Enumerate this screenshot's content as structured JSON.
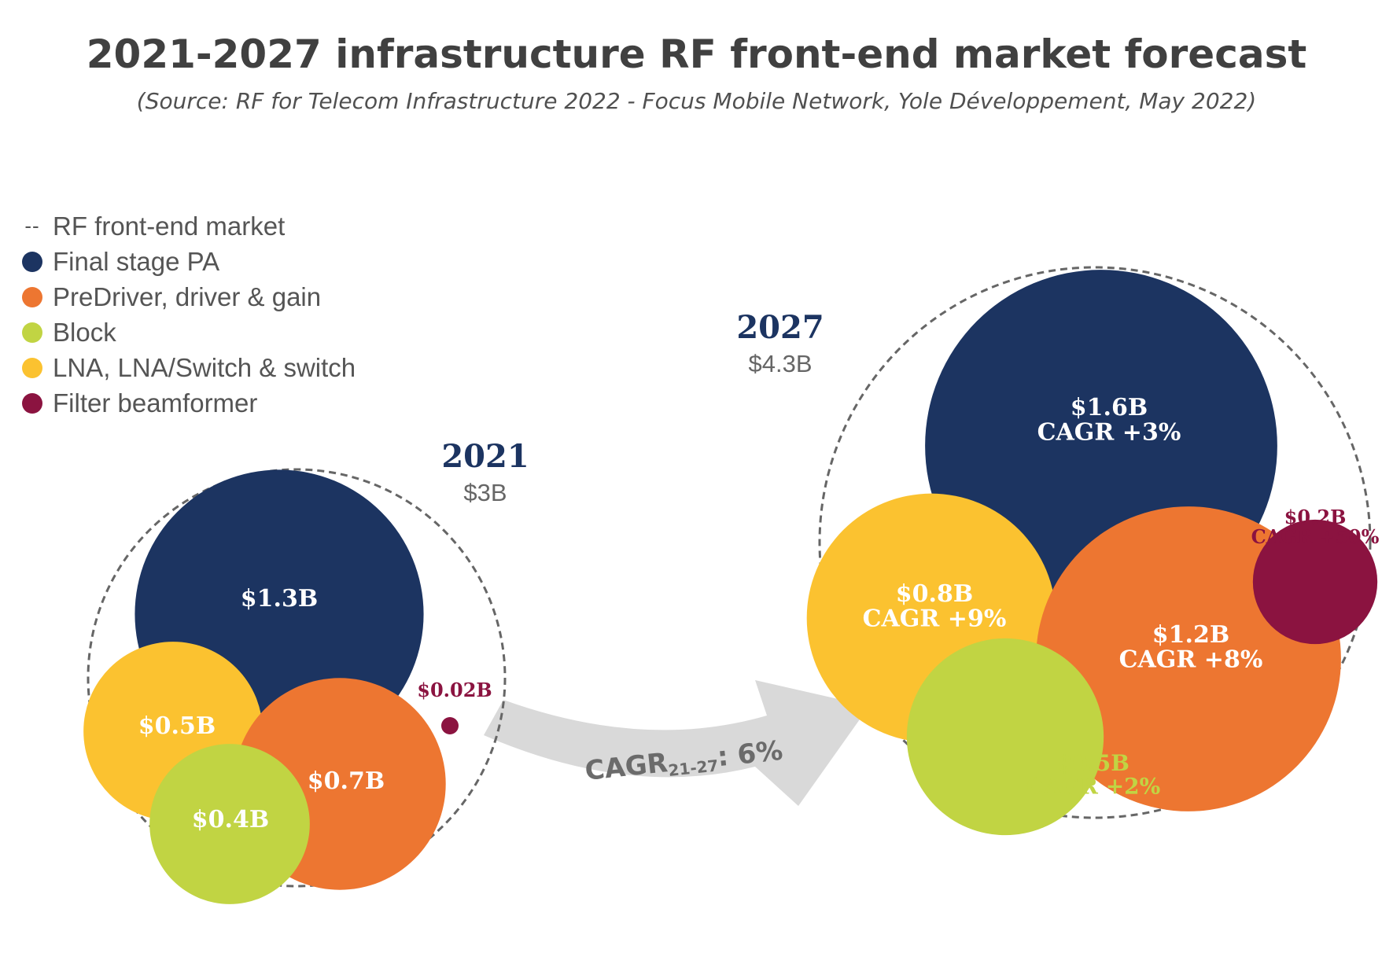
{
  "chart_data": {
    "type": "bubble",
    "title": "2021-2027 infrastructure RF front-end market forecast",
    "subtitle": "(Source: RF for Telecom Infrastructure 2022 - Focus Mobile Network, Yole Développement, May 2022)",
    "legend": [
      {
        "label": "RF front-end market",
        "marker": "dashed-line",
        "color": "#666666"
      },
      {
        "label": "Final stage PA",
        "marker": "dot",
        "color": "#1c3461"
      },
      {
        "label": "PreDriver, driver & gain",
        "marker": "dot",
        "color": "#ed7631"
      },
      {
        "label": "Block",
        "marker": "dot",
        "color": "#c1d443"
      },
      {
        "label": "LNA, LNA/Switch & switch",
        "marker": "dot",
        "color": "#fbc230"
      },
      {
        "label": "Filter beamformer",
        "marker": "dot",
        "color": "#8b1340"
      }
    ],
    "legend_position": "top-left",
    "years": [
      {
        "year": "2021",
        "total_label": "$3B",
        "total_value": 3,
        "segments": [
          {
            "segment": "Final stage PA",
            "value": 1.3,
            "label": "$1.3B",
            "cagr": ""
          },
          {
            "segment": "LNA, LNA/Switch & switch",
            "value": 0.5,
            "label": "$0.5B",
            "cagr": ""
          },
          {
            "segment": "PreDriver, driver & gain",
            "value": 0.7,
            "label": "$0.7B",
            "cagr": ""
          },
          {
            "segment": "Block",
            "value": 0.4,
            "label": "$0.4B",
            "cagr": ""
          },
          {
            "segment": "Filter beamformer",
            "value": 0.02,
            "label": "$0.02B",
            "cagr": ""
          }
        ]
      },
      {
        "year": "2027",
        "total_label": "$4.3B",
        "total_value": 4.3,
        "segments": [
          {
            "segment": "Final stage PA",
            "value": 1.6,
            "label": "$1.6B",
            "cagr": "CAGR +3%"
          },
          {
            "segment": "LNA, LNA/Switch & switch",
            "value": 0.8,
            "label": "$0.8B",
            "cagr": "CAGR +9%"
          },
          {
            "segment": "PreDriver, driver & gain",
            "value": 1.2,
            "label": "$1.2B",
            "cagr": "CAGR +8%"
          },
          {
            "segment": "Block",
            "value": 0.5,
            "label": "$0.5B",
            "cagr": "CAGR +2%"
          },
          {
            "segment": "Filter beamformer",
            "value": 0.2,
            "label": "$0.2B",
            "cagr": "CAGR +50%"
          }
        ]
      }
    ],
    "overall_cagr": {
      "prefix": "CAGR",
      "period": "21-27",
      "suffix": ": 6%"
    }
  }
}
